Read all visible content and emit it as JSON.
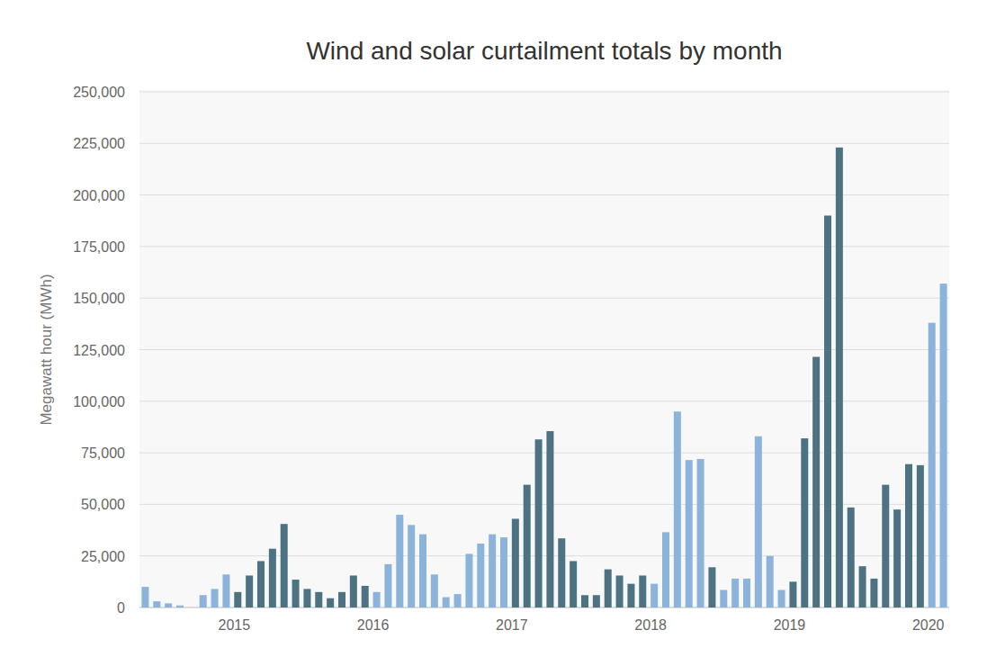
{
  "chart_data": {
    "type": "bar",
    "title": "Wind and solar curtailment totals by month",
    "y_label": "Megawatt hour (MWh)",
    "categories": [
      null,
      null,
      null,
      null,
      null,
      null,
      null,
      null,
      "2015",
      null,
      null,
      null,
      null,
      null,
      null,
      null,
      null,
      null,
      null,
      null,
      "2016",
      null,
      null,
      null,
      null,
      null,
      null,
      null,
      null,
      null,
      null,
      null,
      "2017",
      null,
      null,
      null,
      null,
      null,
      null,
      null,
      null,
      null,
      null,
      null,
      "2018",
      null,
      null,
      null,
      null,
      null,
      null,
      null,
      null,
      null,
      null,
      null,
      "2019",
      null,
      null,
      null,
      null,
      null,
      null,
      null,
      null,
      null,
      null,
      null,
      "2020",
      null
    ],
    "values": [
      10000,
      3000,
      2000,
      1000,
      0,
      6000,
      9000,
      16000,
      7500,
      15500,
      22500,
      28500,
      40500,
      13500,
      9000,
      7500,
      4500,
      7500,
      15500,
      10500,
      7500,
      21000,
      45000,
      40000,
      35500,
      16000,
      5000,
      6500,
      26000,
      31000,
      35500,
      34000,
      43000,
      59500,
      81500,
      85500,
      33500,
      22500,
      6000,
      6000,
      18500,
      15500,
      11500,
      15500,
      11500,
      36500,
      95000,
      71500,
      72000,
      19500,
      8500,
      14000,
      14000,
      83000,
      25000,
      8500,
      12500,
      82000,
      121500,
      190000,
      223000,
      48500,
      20000,
      14000,
      59500,
      47500,
      69500,
      69000,
      138000,
      157000
    ],
    "colors": [
      "#8cb3d9",
      "#8cb3d9",
      "#8cb3d9",
      "#8cb3d9",
      "#8cb3d9",
      "#8cb3d9",
      "#8cb3d9",
      "#8cb3d9",
      "#4d7383",
      "#4d7383",
      "#4d7383",
      "#4d7383",
      "#4d7383",
      "#4d7383",
      "#4d7383",
      "#4d7383",
      "#4d7383",
      "#4d7383",
      "#4d7383",
      "#4d7383",
      "#8cb3d9",
      "#8cb3d9",
      "#8cb3d9",
      "#8cb3d9",
      "#8cb3d9",
      "#8cb3d9",
      "#8cb3d9",
      "#8cb3d9",
      "#8cb3d9",
      "#8cb3d9",
      "#8cb3d9",
      "#8cb3d9",
      "#4d7383",
      "#4d7383",
      "#4d7383",
      "#4d7383",
      "#4d7383",
      "#4d7383",
      "#4d7383",
      "#4d7383",
      "#4d7383",
      "#4d7383",
      "#4d7383",
      "#4d7383",
      "#8cb3d9",
      "#8cb3d9",
      "#8cb3d9",
      "#8cb3d9",
      "#8cb3d9",
      "#4d7383",
      "#8cb3d9",
      "#8cb3d9",
      "#8cb3d9",
      "#8cb3d9",
      "#8cb3d9",
      "#8cb3d9",
      "#4d7383",
      "#4d7383",
      "#4d7383",
      "#4d7383",
      "#4d7383",
      "#4d7383",
      "#4d7383",
      "#4d7383",
      "#4d7383",
      "#4d7383",
      "#4d7383",
      "#4d7383",
      "#8cb3d9",
      "#8cb3d9"
    ],
    "ylim": [
      0,
      250000
    ],
    "yticks": [
      0,
      {
        "value": 25000,
        "label": "25,000"
      },
      {
        "value": 50000,
        "label": "50,000"
      },
      {
        "value": 75000,
        "label": "75,000"
      },
      {
        "value": 100000,
        "label": "100,000"
      },
      {
        "value": 125000,
        "label": "125,000"
      },
      {
        "value": 150000,
        "label": "150,000"
      },
      {
        "value": 175000,
        "label": "175,000"
      },
      {
        "value": 200000,
        "label": "200,000"
      },
      {
        "value": 225000,
        "label": "225,000"
      },
      {
        "value": 250000,
        "label": "250,000"
      }
    ],
    "grid": true
  }
}
